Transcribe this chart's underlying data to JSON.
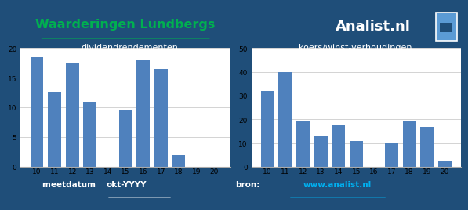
{
  "title": "Waarderingen Lundbergs",
  "analist_text": "Analist.nl",
  "bg_color": "#1F4E79",
  "chart_bg": "#FFFFFF",
  "bar_color": "#4F81BD",
  "left_subtitle": "dividendrendementen",
  "right_subtitle": "koers/winst-verhoudingen",
  "categories": [
    "10",
    "11",
    "12",
    "13",
    "14",
    "15",
    "16",
    "17",
    "18",
    "19",
    "20"
  ],
  "div_values": [
    18.5,
    12.5,
    17.5,
    11.0,
    0.0,
    9.5,
    18.0,
    16.5,
    2.0,
    0.0,
    0.0
  ],
  "kw_values": [
    32.0,
    40.0,
    19.5,
    13.0,
    18.0,
    11.0,
    0.0,
    10.0,
    19.0,
    17.0,
    2.5
  ],
  "div_ylim": [
    0,
    20
  ],
  "div_yticks": [
    0,
    5,
    10,
    15,
    20
  ],
  "kw_ylim": [
    0,
    50
  ],
  "kw_yticks": [
    0,
    10,
    20,
    30,
    40,
    50
  ],
  "footer_meetdatum": "meetdatum ",
  "footer_date": "okt-YYYY",
  "footer_bron": "bron:",
  "footer_url": "www.analist.nl",
  "title_color": "#00B050",
  "url_color": "#00B0F0",
  "text_color": "#FFFFFF"
}
